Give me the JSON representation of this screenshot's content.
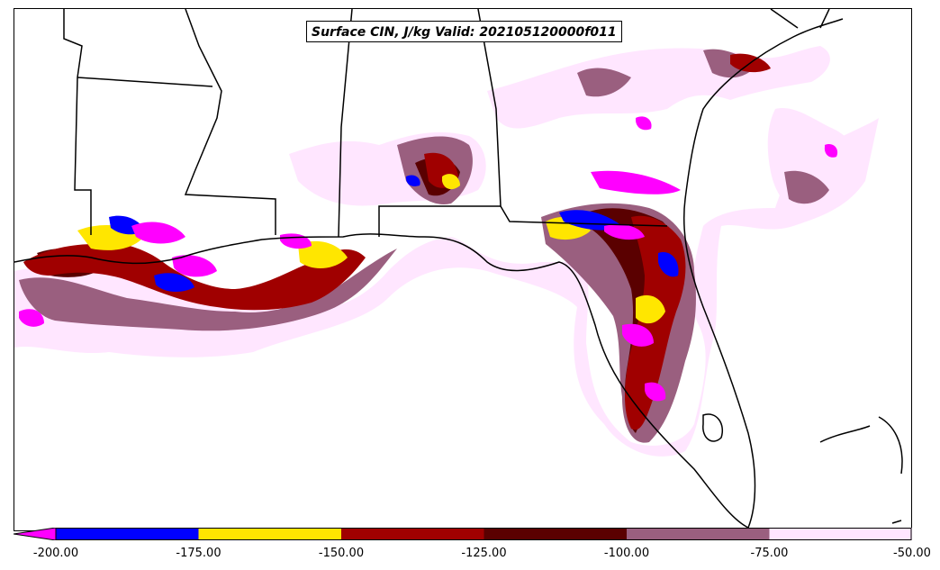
{
  "title": "Surface CIN, J/kg Valid: 202105120000f011",
  "colorbar": {
    "ticks": [
      "-200.00",
      "-175.00",
      "-150.00",
      "-125.00",
      "-100.00",
      "-75.00",
      "-50.00"
    ],
    "bins": [
      {
        "range": "< -200",
        "color": "#ff00ff"
      },
      {
        "range": "-200 to -175",
        "color": "#0000ff"
      },
      {
        "range": "-175 to -150",
        "color": "#ffe600"
      },
      {
        "range": "-150 to -125",
        "color": "#a00000"
      },
      {
        "range": "-125 to -100",
        "color": "#5a0000"
      },
      {
        "range": "-100 to -75",
        "color": "#9a5f7f"
      },
      {
        "range": "-75 to -50",
        "color": "#ffe6ff"
      }
    ]
  },
  "map": {
    "region": "US Gulf Coast and Florida",
    "field": "Surface convective inhibition",
    "colors": {
      "border": "#000000",
      "background": "#ffffff"
    }
  }
}
